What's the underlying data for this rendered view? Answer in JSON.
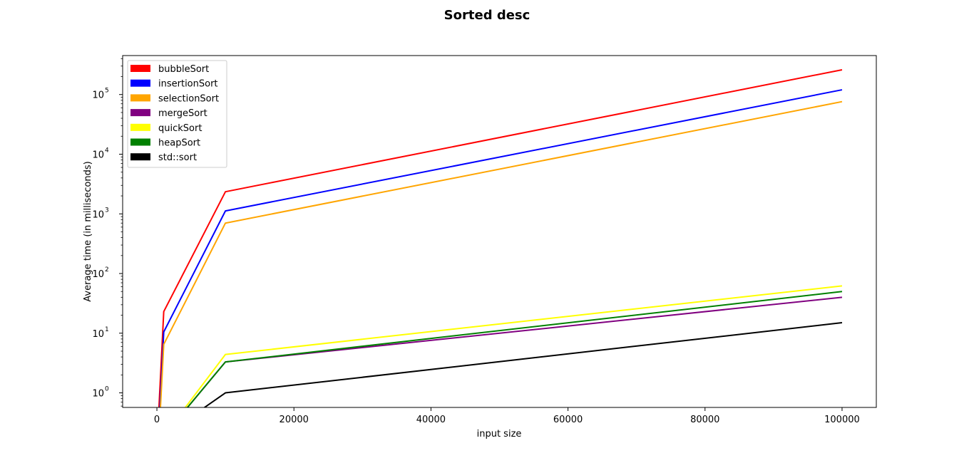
{
  "chart_data": {
    "type": "line",
    "title": "Sorted desc",
    "xlabel": "input size",
    "ylabel": "Average time (in milliseconds)",
    "xlim": [
      -5000,
      105000
    ],
    "ylim": [
      0.57,
      450000
    ],
    "yscale": "log",
    "grid": false,
    "legend_position": "top-left",
    "x_ticks": [
      0,
      20000,
      40000,
      60000,
      80000,
      100000
    ],
    "x_tick_labels": [
      "0",
      "20000",
      "40000",
      "60000",
      "80000",
      "100000"
    ],
    "y_ticks": [
      1,
      10,
      100,
      1000,
      10000,
      100000
    ],
    "y_tick_labels": [
      "10",
      "10",
      "10",
      "10",
      "10",
      "10"
    ],
    "y_tick_exponents": [
      "0",
      "1",
      "2",
      "3",
      "4",
      "5"
    ],
    "x": [
      10,
      100,
      1000,
      10000,
      100000
    ],
    "series": [
      {
        "name": "bubbleSort",
        "color": "#ff0000",
        "values": [
          0,
          0.2,
          23,
          2350,
          260000
        ]
      },
      {
        "name": "insertionSort",
        "color": "#0000ff",
        "values": [
          0,
          0.1,
          10.5,
          1120,
          120000
        ]
      },
      {
        "name": "selectionSort",
        "color": "#ffa500",
        "values": [
          0,
          0.07,
          6.5,
          700,
          76000
        ]
      },
      {
        "name": "mergeSort",
        "color": "#800080",
        "values": [
          0,
          0,
          0,
          3.3,
          40
        ]
      },
      {
        "name": "quickSort",
        "color": "#ffff00",
        "values": [
          0,
          0,
          0,
          4.4,
          62
        ]
      },
      {
        "name": "heapSort",
        "color": "#008000",
        "values": [
          0,
          0,
          0,
          3.3,
          50
        ]
      },
      {
        "name": "std::sort",
        "color": "#000000",
        "values": [
          0,
          0,
          0,
          1.0,
          15
        ]
      }
    ]
  }
}
